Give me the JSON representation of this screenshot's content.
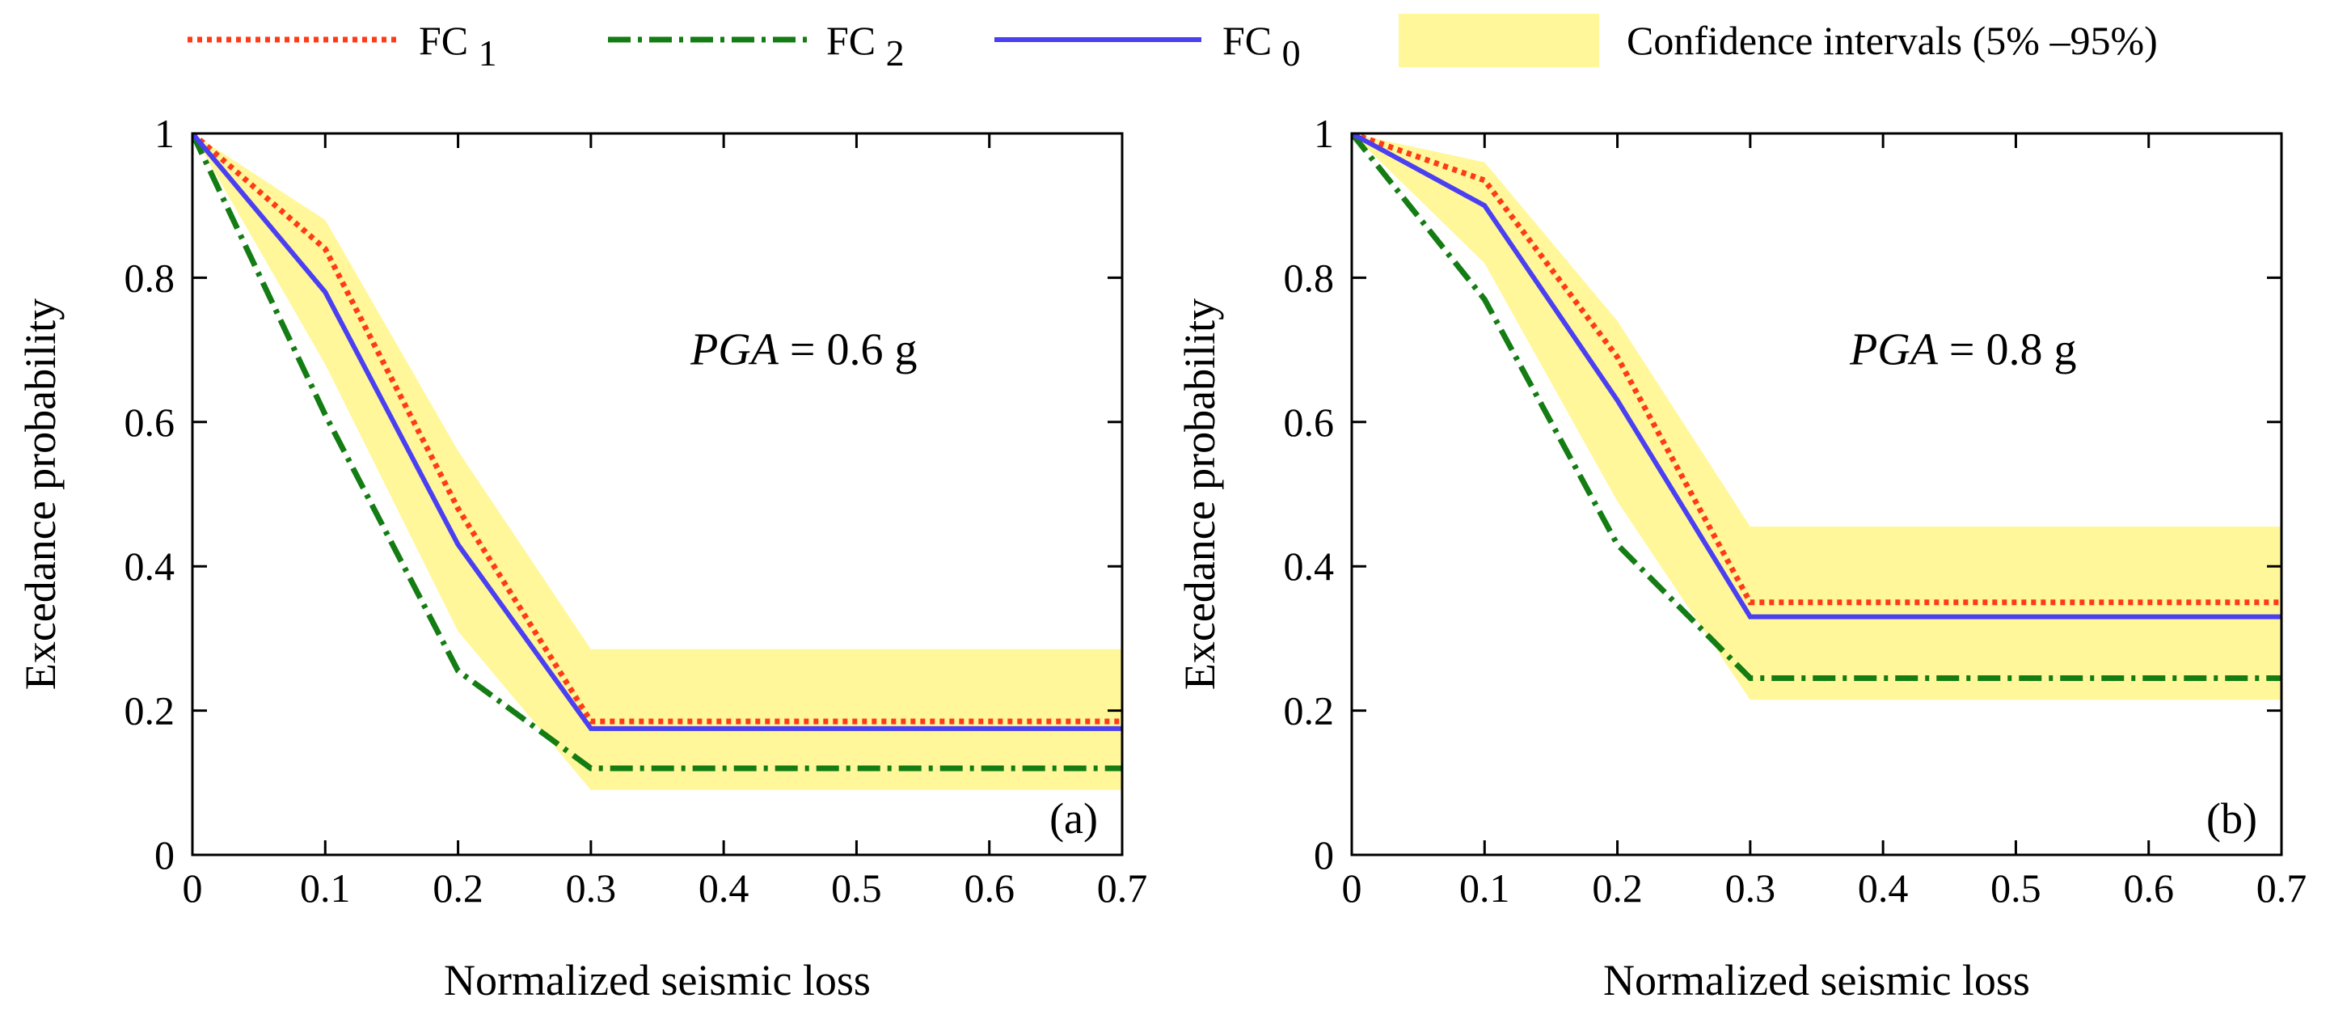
{
  "legend": {
    "placement": "top",
    "items": [
      {
        "key": "fc1",
        "base": "FC",
        "sub": "1",
        "style": "dotted",
        "color": "#ff3b17"
      },
      {
        "key": "fc2",
        "base": "FC",
        "sub": "2",
        "style": "dashdot",
        "color": "#137c13"
      },
      {
        "key": "fc0",
        "base": "FC",
        "sub": "0",
        "style": "solid",
        "color": "#4b3ff2"
      },
      {
        "key": "ci",
        "label": "Confidence intervals (5% –95%)",
        "style": "band",
        "color": "#fff799"
      }
    ]
  },
  "chart_data": [
    {
      "type": "line",
      "panel_label": "(a)",
      "annotation": {
        "var": "PGA",
        "rest": " = 0.6 g"
      },
      "xlabel": "Normalized seismic loss",
      "ylabel": "Excedance probability",
      "xlim": [
        0,
        0.7
      ],
      "ylim": [
        0,
        1
      ],
      "xticks": [
        "0",
        "0.1",
        "0.2",
        "0.3",
        "0.4",
        "0.5",
        "0.6",
        "0.7"
      ],
      "yticks": [
        "0",
        "0.2",
        "0.4",
        "0.6",
        "0.8",
        "1"
      ],
      "x": [
        0,
        0.1,
        0.2,
        0.3,
        0.7
      ],
      "series": [
        {
          "key": "fc1",
          "name": "FC1",
          "values": [
            1.0,
            0.84,
            0.48,
            0.185,
            0.185
          ]
        },
        {
          "key": "fc2",
          "name": "FC2",
          "values": [
            1.0,
            0.61,
            0.255,
            0.12,
            0.12
          ]
        },
        {
          "key": "fc0",
          "name": "FC0",
          "values": [
            1.0,
            0.78,
            0.43,
            0.175,
            0.175
          ]
        }
      ],
      "band": {
        "name": "Confidence intervals (5%-95%)",
        "upper": [
          1.0,
          0.88,
          0.56,
          0.285,
          0.285
        ],
        "lower": [
          1.0,
          0.68,
          0.31,
          0.09,
          0.09
        ]
      }
    },
    {
      "type": "line",
      "panel_label": "(b)",
      "annotation": {
        "var": "PGA",
        "rest": " = 0.8 g"
      },
      "xlabel": "Normalized seismic loss",
      "ylabel": "Excedance probability",
      "xlim": [
        0,
        0.7
      ],
      "ylim": [
        0,
        1
      ],
      "xticks": [
        "0",
        "0.1",
        "0.2",
        "0.3",
        "0.4",
        "0.5",
        "0.6",
        "0.7"
      ],
      "yticks": [
        "0",
        "0.2",
        "0.4",
        "0.6",
        "0.8",
        "1"
      ],
      "x": [
        0,
        0.1,
        0.2,
        0.3,
        0.7
      ],
      "series": [
        {
          "key": "fc1",
          "name": "FC1",
          "values": [
            1.0,
            0.935,
            0.69,
            0.35,
            0.35
          ]
        },
        {
          "key": "fc2",
          "name": "FC2",
          "values": [
            1.0,
            0.77,
            0.43,
            0.245,
            0.245
          ]
        },
        {
          "key": "fc0",
          "name": "FC0",
          "values": [
            1.0,
            0.9,
            0.63,
            0.33,
            0.33
          ]
        }
      ],
      "band": {
        "name": "Confidence intervals (5%-95%)",
        "upper": [
          1.0,
          0.96,
          0.74,
          0.455,
          0.455
        ],
        "lower": [
          1.0,
          0.82,
          0.49,
          0.215,
          0.215
        ]
      }
    }
  ]
}
